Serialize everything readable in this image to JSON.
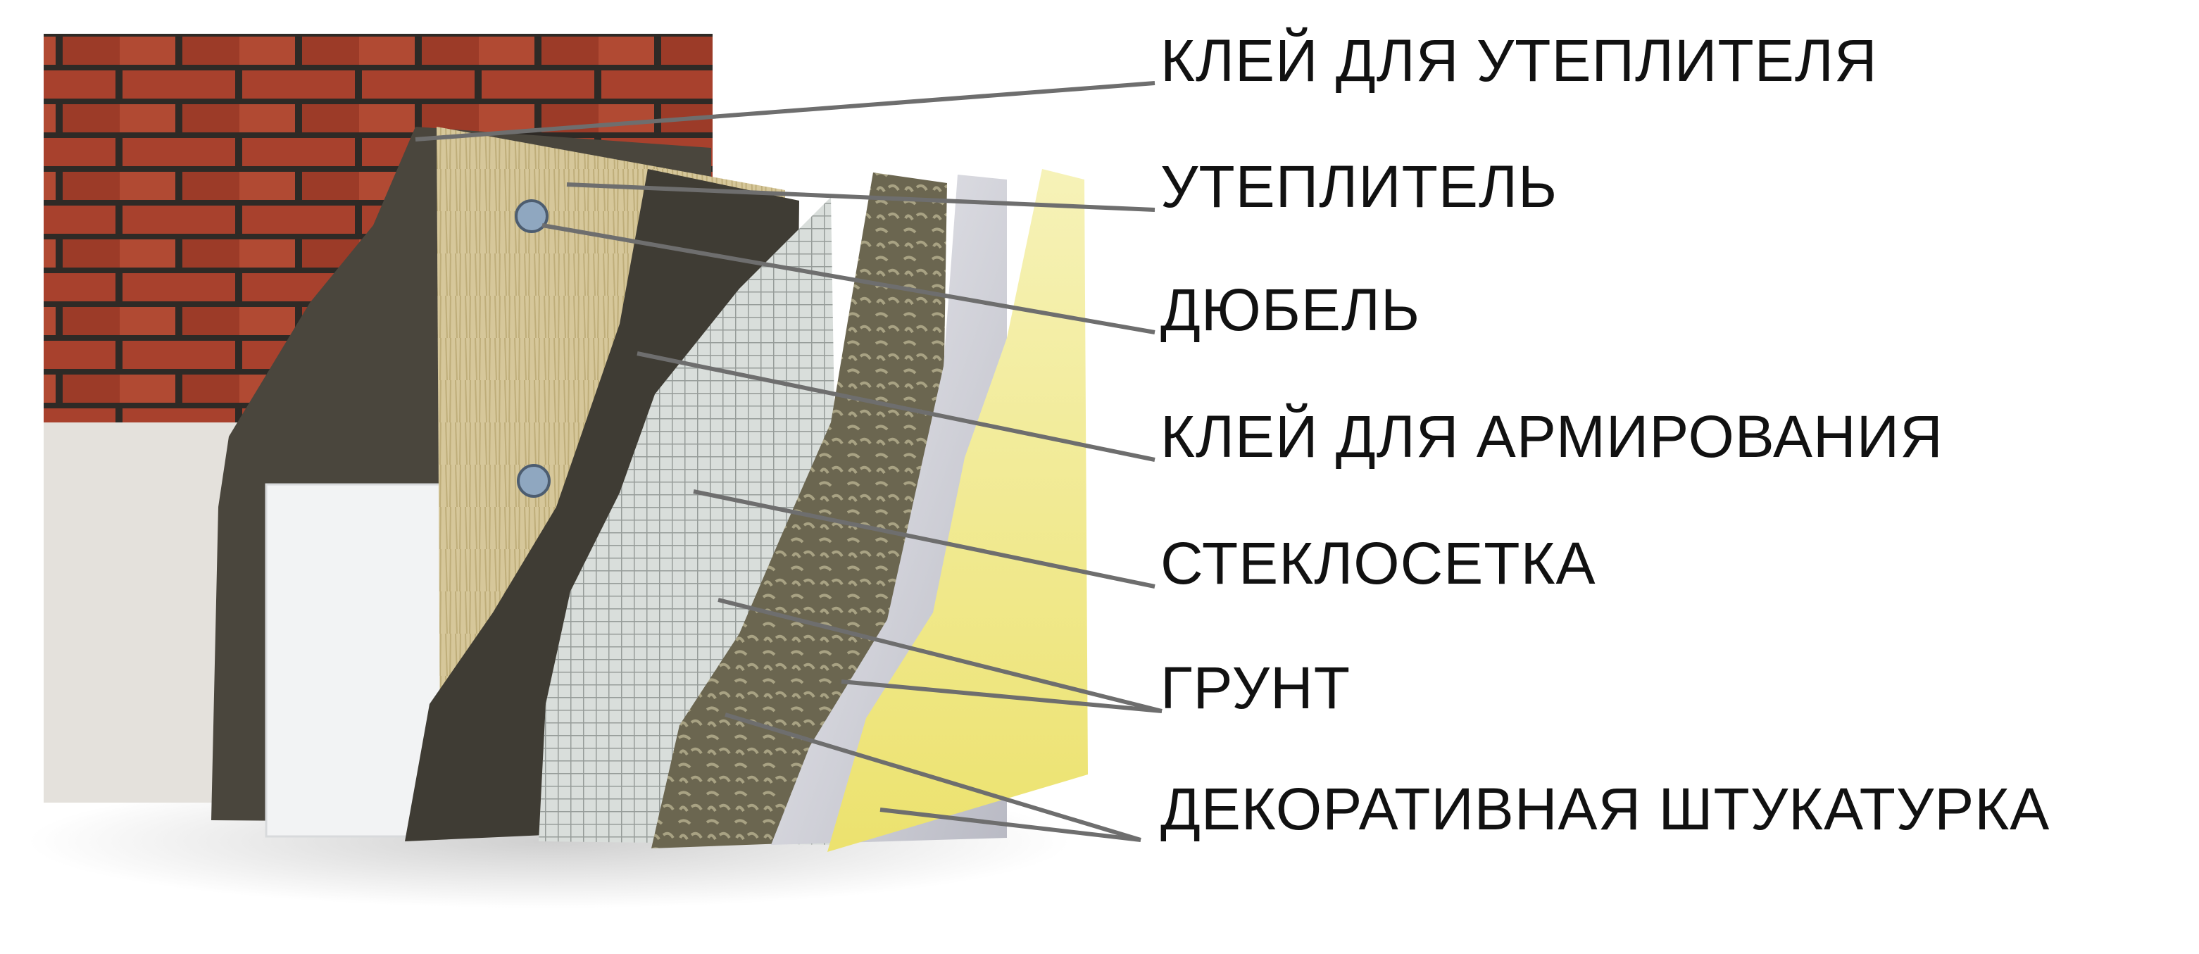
{
  "labels": [
    {
      "id": "glue-insulation",
      "text": "КЛЕЙ ДЛЯ УТЕПЛИТЕЛЯ"
    },
    {
      "id": "insulation",
      "text": "УТЕПЛИТЕЛЬ"
    },
    {
      "id": "dowel",
      "text": "ДЮБЕЛЬ"
    },
    {
      "id": "glue-reinforce",
      "text": "КЛЕЙ ДЛЯ АРМИРОВАНИЯ"
    },
    {
      "id": "fiberglass-mesh",
      "text": "СТЕКЛОСЕТКА"
    },
    {
      "id": "primer",
      "text": "ГРУНТ"
    },
    {
      "id": "decor-plaster",
      "text": "ДЕКОРАТИВНАЯ ШТУКАТУРКА"
    }
  ],
  "colors": {
    "brick": "#a8412d",
    "mortar": "#2e2a26",
    "concrete": "#e4e1dc",
    "adhesive": "#4a463d",
    "mineral_wool": "#d6c79a",
    "eps_board": "#f2f3f4",
    "mesh": "#c9cfcc",
    "primer": "#dcdde1",
    "plaster_texture": "#6b6650",
    "finish_coat": "#f3eea1",
    "leader_line": "#6e6e6e",
    "text": "#111111"
  }
}
